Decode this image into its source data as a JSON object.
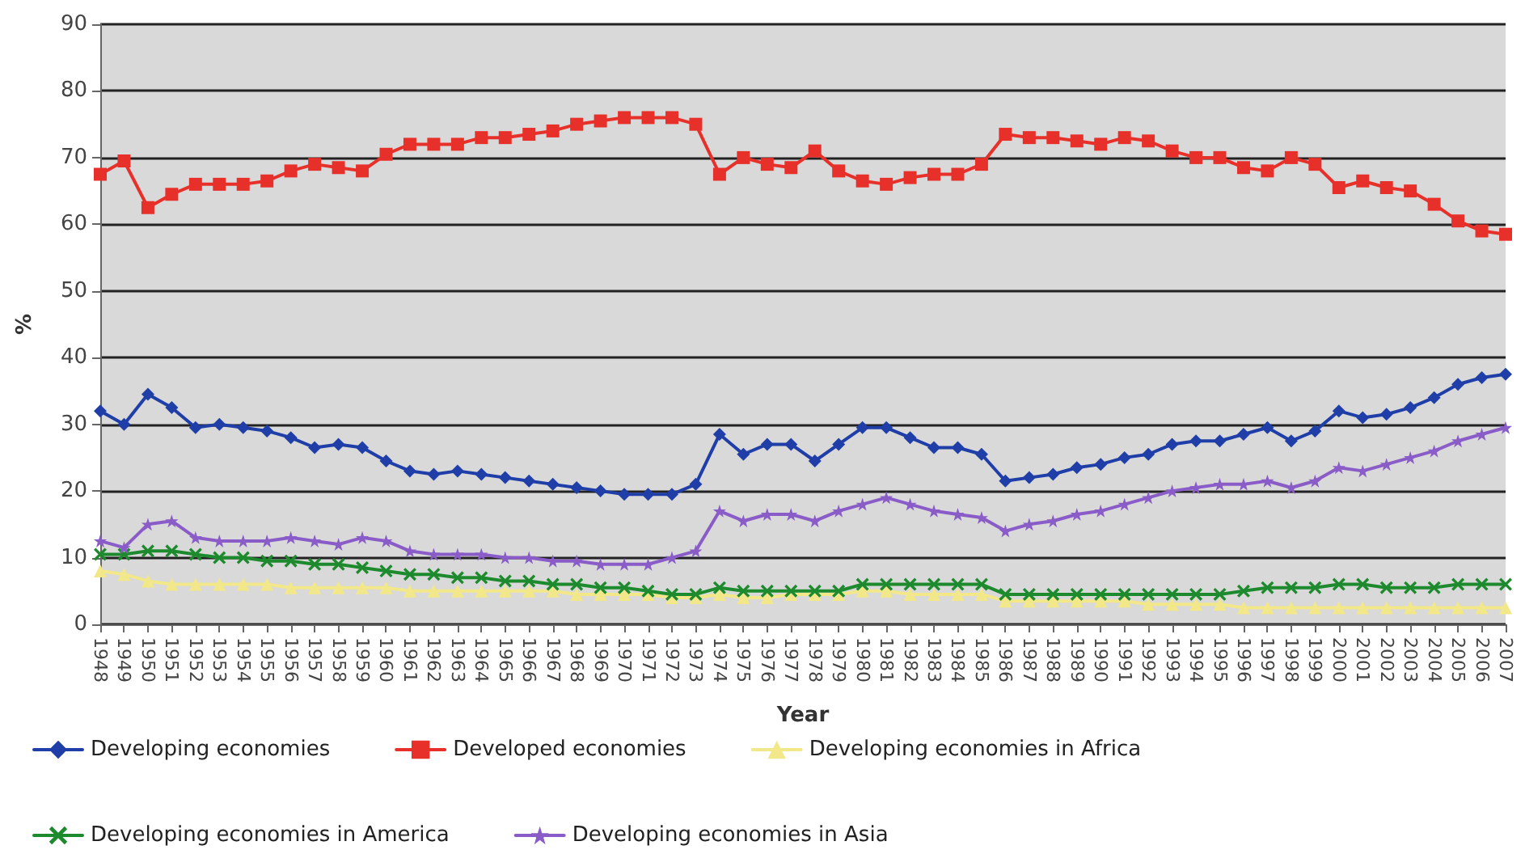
{
  "chart_data": {
    "type": "line",
    "xlabel": "Year",
    "ylabel": "%",
    "categories": [
      "1948",
      "1949",
      "1950",
      "1951",
      "1952",
      "1953",
      "1954",
      "1955",
      "1956",
      "1957",
      "1958",
      "1959",
      "1960",
      "1961",
      "1962",
      "1963",
      "1964",
      "1965",
      "1966",
      "1967",
      "1968",
      "1969",
      "1970",
      "1971",
      "1972",
      "1973",
      "1974",
      "1975",
      "1976",
      "1977",
      "1978",
      "1979",
      "1980",
      "1981",
      "1982",
      "1983",
      "1984",
      "1985",
      "1986",
      "1987",
      "1988",
      "1989",
      "1990",
      "1991",
      "1992",
      "1993",
      "1994",
      "1995",
      "1996",
      "1997",
      "1998",
      "1999",
      "2000",
      "2001",
      "2002",
      "2003",
      "2004",
      "2005",
      "2006",
      "2007"
    ],
    "series": [
      {
        "name": "Developing economies",
        "color": "#1f3ea8",
        "marker": "diamond",
        "values": [
          32,
          30,
          34.5,
          32.5,
          29.5,
          30,
          29.5,
          29,
          28,
          26.5,
          27,
          26.5,
          24.5,
          23,
          22.5,
          23,
          22.5,
          22,
          21.5,
          21,
          20.5,
          20,
          19.5,
          19.5,
          19.5,
          21,
          28.5,
          25.5,
          27,
          27,
          24.5,
          27,
          29.5,
          29.5,
          28,
          26.5,
          26.5,
          25.5,
          21.5,
          22,
          22.5,
          23.5,
          24,
          25,
          25.5,
          27,
          27.5,
          27.5,
          28.5,
          29.5,
          27.5,
          29,
          32,
          31,
          31.5,
          32.5,
          34,
          36,
          37,
          37.5
        ]
      },
      {
        "name": "Developed economies",
        "color": "#e8302a",
        "marker": "square",
        "values": [
          67.5,
          69.5,
          62.5,
          64.5,
          66,
          66,
          66,
          66.5,
          68,
          69,
          68.5,
          68,
          70.5,
          72,
          72,
          72,
          73,
          73,
          73.5,
          74,
          75,
          75.5,
          76,
          76,
          76,
          75,
          67.5,
          70,
          69,
          68.5,
          71,
          68,
          66.5,
          66,
          67,
          67.5,
          67.5,
          69,
          73.5,
          73,
          73,
          72.5,
          72,
          73,
          72.5,
          71,
          70,
          70,
          68.5,
          68,
          70,
          69,
          65.5,
          66.5,
          65.5,
          65,
          63,
          60.5,
          59,
          58.5
        ]
      },
      {
        "name": "Developing economies in Africa",
        "color": "#f2e88a",
        "marker": "triangle",
        "values": [
          8,
          7.5,
          6.5,
          6,
          6,
          6,
          6,
          6,
          5.5,
          5.5,
          5.5,
          5.5,
          5.5,
          5,
          5,
          5,
          5,
          5,
          5,
          5,
          4.5,
          4.5,
          4.5,
          4.5,
          4,
          4,
          4.5,
          4,
          4,
          4.5,
          4.5,
          4.5,
          5,
          5,
          4.5,
          4.5,
          4.5,
          4.5,
          3.5,
          3.5,
          3.5,
          3.5,
          3.5,
          3.5,
          3,
          3,
          3,
          3,
          2.5,
          2.5,
          2.5,
          2.5,
          2.5,
          2.5,
          2.5,
          2.5,
          2.5,
          2.5,
          2.5,
          2.5
        ]
      },
      {
        "name": "Developing economies in America",
        "color": "#1e8a2e",
        "marker": "cross",
        "values": [
          10.5,
          10.5,
          11,
          11,
          10.5,
          10,
          10,
          9.5,
          9.5,
          9,
          9,
          8.5,
          8,
          7.5,
          7.5,
          7,
          7,
          6.5,
          6.5,
          6,
          6,
          5.5,
          5.5,
          5,
          4.5,
          4.5,
          5.5,
          5,
          5,
          5,
          5,
          5,
          6,
          6,
          6,
          6,
          6,
          6,
          4.5,
          4.5,
          4.5,
          4.5,
          4.5,
          4.5,
          4.5,
          4.5,
          4.5,
          4.5,
          5,
          5.5,
          5.5,
          5.5,
          6,
          6,
          5.5,
          5.5,
          5.5,
          6,
          6,
          6
        ]
      },
      {
        "name": "Developing economies in Asia",
        "color": "#8a5cc8",
        "marker": "star",
        "values": [
          12.5,
          11.5,
          15,
          15.5,
          13,
          12.5,
          12.5,
          12.5,
          13,
          12.5,
          12,
          13,
          12.5,
          11,
          10.5,
          10.5,
          10.5,
          10,
          10,
          9.5,
          9.5,
          9,
          9,
          9,
          10,
          11,
          17,
          15.5,
          16.5,
          16.5,
          15.5,
          17,
          18,
          19,
          18,
          17,
          16.5,
          16,
          14,
          15,
          15.5,
          16.5,
          17,
          18,
          19,
          20,
          20.5,
          21,
          21,
          21.5,
          20.5,
          21.5,
          23.5,
          23,
          24,
          25,
          26,
          27.5,
          28.5,
          29.5
        ]
      }
    ],
    "ylim": [
      0,
      90
    ],
    "yticks": [
      0,
      10,
      20,
      30,
      40,
      50,
      60,
      70,
      80,
      90
    ],
    "grid": "y",
    "legend": "bottom",
    "line_style": "solid"
  }
}
